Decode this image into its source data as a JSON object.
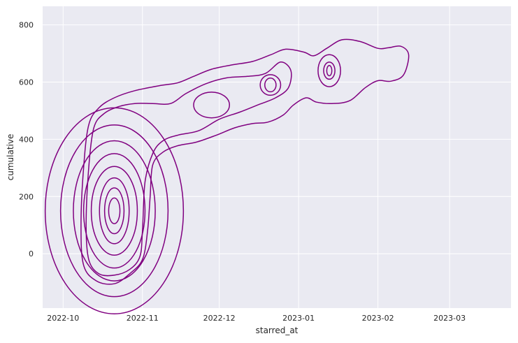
{
  "chart_data": {
    "type": "kde-contour",
    "title": "",
    "xlabel": "starred_at",
    "ylabel": "cumulative",
    "x_ticks": [
      "2022-10",
      "2022-11",
      "2022-12",
      "2023-01",
      "2023-02",
      "2023-03"
    ],
    "y_ticks": [
      0,
      200,
      400,
      600,
      800
    ],
    "xlim": [
      "2022-09-23",
      "2023-03-25"
    ],
    "ylim": [
      -190,
      865
    ],
    "grid": true,
    "background": "#eaeaf2",
    "line_color": "#800080",
    "contours": [
      [
        [
          "2022-10-08",
          100
        ],
        [
          "2022-10-09",
          300
        ],
        [
          "2022-10-11",
          450
        ],
        [
          "2022-10-15",
          510
        ],
        [
          "2022-10-21",
          545
        ],
        [
          "2022-10-29",
          570
        ],
        [
          "2022-11-08",
          588
        ],
        [
          "2022-11-15",
          598
        ],
        [
          "2022-11-21",
          620
        ],
        [
          "2022-11-28",
          645
        ],
        [
          "2022-12-06",
          660
        ],
        [
          "2022-12-14",
          672
        ],
        [
          "2022-12-21",
          695
        ],
        [
          "2022-12-27",
          715
        ],
        [
          "2023-01-03",
          705
        ],
        [
          "2023-01-07",
          692
        ],
        [
          "2023-01-12",
          718
        ],
        [
          "2023-01-18",
          748
        ],
        [
          "2023-01-25",
          742
        ],
        [
          "2023-02-01",
          718
        ],
        [
          "2023-02-05",
          720
        ],
        [
          "2023-02-10",
          725
        ],
        [
          "2023-02-13",
          695
        ],
        [
          "2023-02-11",
          625
        ],
        [
          "2023-02-06",
          603
        ],
        [
          "2023-02-01",
          605
        ],
        [
          "2023-01-27",
          580
        ],
        [
          "2023-01-21",
          535
        ],
        [
          "2023-01-14",
          525
        ],
        [
          "2023-01-08",
          530
        ],
        [
          "2023-01-04",
          545
        ],
        [
          "2022-12-30",
          520
        ],
        [
          "2022-12-26",
          485
        ],
        [
          "2022-12-20",
          460
        ],
        [
          "2022-12-14",
          455
        ],
        [
          "2022-12-07",
          440
        ],
        [
          "2022-11-30",
          415
        ],
        [
          "2022-11-22",
          390
        ],
        [
          "2022-11-15",
          378
        ],
        [
          "2022-11-09",
          355
        ],
        [
          "2022-11-05",
          310
        ],
        [
          "2022-11-04",
          200
        ],
        [
          "2022-11-03",
          80
        ],
        [
          "2022-11-01",
          -20
        ],
        [
          "2022-10-27",
          -70
        ],
        [
          "2022-10-21",
          -105
        ],
        [
          "2022-10-14",
          -95
        ],
        [
          "2022-10-09",
          -40
        ],
        [
          "2022-10-08",
          100
        ]
      ],
      [
        [
          "2022-10-10",
          100
        ],
        [
          "2022-10-11",
          300
        ],
        [
          "2022-10-13",
          440
        ],
        [
          "2022-10-17",
          490
        ],
        [
          "2022-10-23",
          515
        ],
        [
          "2022-10-29",
          525
        ],
        [
          "2022-11-05",
          525
        ],
        [
          "2022-11-12",
          525
        ],
        [
          "2022-11-18",
          560
        ],
        [
          "2022-11-26",
          595
        ],
        [
          "2022-12-04",
          615
        ],
        [
          "2022-12-12",
          620
        ],
        [
          "2022-12-19",
          630
        ],
        [
          "2022-12-25",
          670
        ],
        [
          "2022-12-29",
          640
        ],
        [
          "2022-12-28",
          580
        ],
        [
          "2022-12-23",
          545
        ],
        [
          "2022-12-16",
          520
        ],
        [
          "2022-12-09",
          495
        ],
        [
          "2022-12-01",
          470
        ],
        [
          "2022-11-23",
          430
        ],
        [
          "2022-11-15",
          415
        ],
        [
          "2022-11-09",
          395
        ],
        [
          "2022-11-05",
          350
        ],
        [
          "2022-11-02",
          250
        ],
        [
          "2022-11-01",
          80
        ],
        [
          "2022-10-31",
          -10
        ],
        [
          "2022-10-27",
          -55
        ],
        [
          "2022-10-21",
          -75
        ],
        [
          "2022-10-15",
          -70
        ],
        [
          "2022-10-11",
          -20
        ],
        [
          "2022-10-10",
          100
        ]
      ]
    ],
    "cores": [
      {
        "x": "2022-10-21",
        "y": 150,
        "levels": [
          [
            270,
            360
          ],
          [
            210,
            300
          ],
          [
            160,
            245
          ],
          [
            120,
            200
          ],
          [
            90,
            155
          ],
          [
            58,
            115
          ],
          [
            38,
            80
          ],
          [
            22,
            45
          ]
        ]
      },
      {
        "x": "2022-11-28",
        "y": 520,
        "levels": [
          [
            70,
            45
          ]
        ]
      },
      {
        "x": "2022-12-21",
        "y": 590,
        "levels": [
          [
            40,
            36
          ],
          [
            22,
            24
          ]
        ]
      },
      {
        "x": "2023-01-13",
        "y": 640,
        "levels": [
          [
            44,
            56
          ],
          [
            22,
            30
          ],
          [
            10,
            18
          ]
        ]
      }
    ]
  }
}
